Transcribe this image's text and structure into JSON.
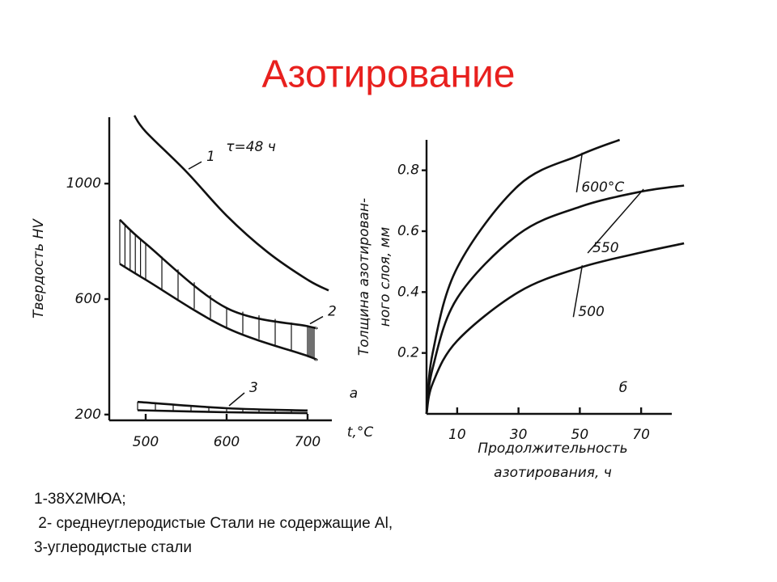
{
  "title": "Азотирование",
  "notes": [
    "1-38Х2МЮА;",
    " 2- среднеуглеродистые Стали не содержащие Al,",
    "3-углеродистые стали"
  ],
  "chart_data": [
    {
      "type": "line",
      "ylabel": [
        "Твердость HV"
      ],
      "xlabel": [
        "t,°C"
      ],
      "annotations": [
        "τ=48 ч",
        "а"
      ],
      "xlim": [
        455,
        730
      ],
      "ylim": [
        180,
        1230
      ],
      "xticks": [
        500,
        600,
        700
      ],
      "yticks": [
        200,
        600,
        1000
      ],
      "color": "#111111",
      "series": [
        {
          "name": "1",
          "x": [
            486,
            500,
            550,
            600,
            650,
            700,
            726
          ],
          "values": [
            1236,
            1180,
            1042,
            889,
            764,
            667,
            630
          ]
        },
        {
          "name": "2",
          "x": [
            468,
            500,
            600,
            700,
            710
          ],
          "values": [
            875,
            792,
            569,
            506,
            500
          ],
          "values_low": [
            722,
            667,
            500,
            403,
            389
          ]
        },
        {
          "name": "3",
          "x": [
            490,
            600,
            700
          ],
          "values": [
            244,
            222,
            214
          ],
          "values_low": [
            215,
            208,
            205
          ]
        }
      ]
    },
    {
      "type": "line",
      "ylabel": [
        "Толщина азотирован-",
        "ного слоя, мм"
      ],
      "xlabel": [
        "Продолжительность",
        "азотирования, ч"
      ],
      "annotations": [
        "б"
      ],
      "xlim": [
        0,
        80
      ],
      "ylim": [
        0,
        0.9
      ],
      "xticks": [
        10,
        30,
        50,
        70
      ],
      "yticks": [
        0.2,
        0.4,
        0.6,
        0.8
      ],
      "color": "#111111",
      "series": [
        {
          "name": "600°С",
          "x": [
            0,
            2,
            10,
            30,
            50,
            63
          ],
          "values": [
            0,
            0.2,
            0.48,
            0.75,
            0.85,
            0.9
          ]
        },
        {
          "name": "550",
          "x": [
            0,
            2,
            10,
            30,
            50,
            70,
            84
          ],
          "values": [
            0,
            0.15,
            0.38,
            0.59,
            0.68,
            0.73,
            0.75
          ]
        },
        {
          "name": "500",
          "x": [
            0,
            2,
            10,
            30,
            50,
            70,
            84
          ],
          "values": [
            0,
            0.1,
            0.24,
            0.4,
            0.48,
            0.53,
            0.56
          ]
        }
      ]
    }
  ]
}
